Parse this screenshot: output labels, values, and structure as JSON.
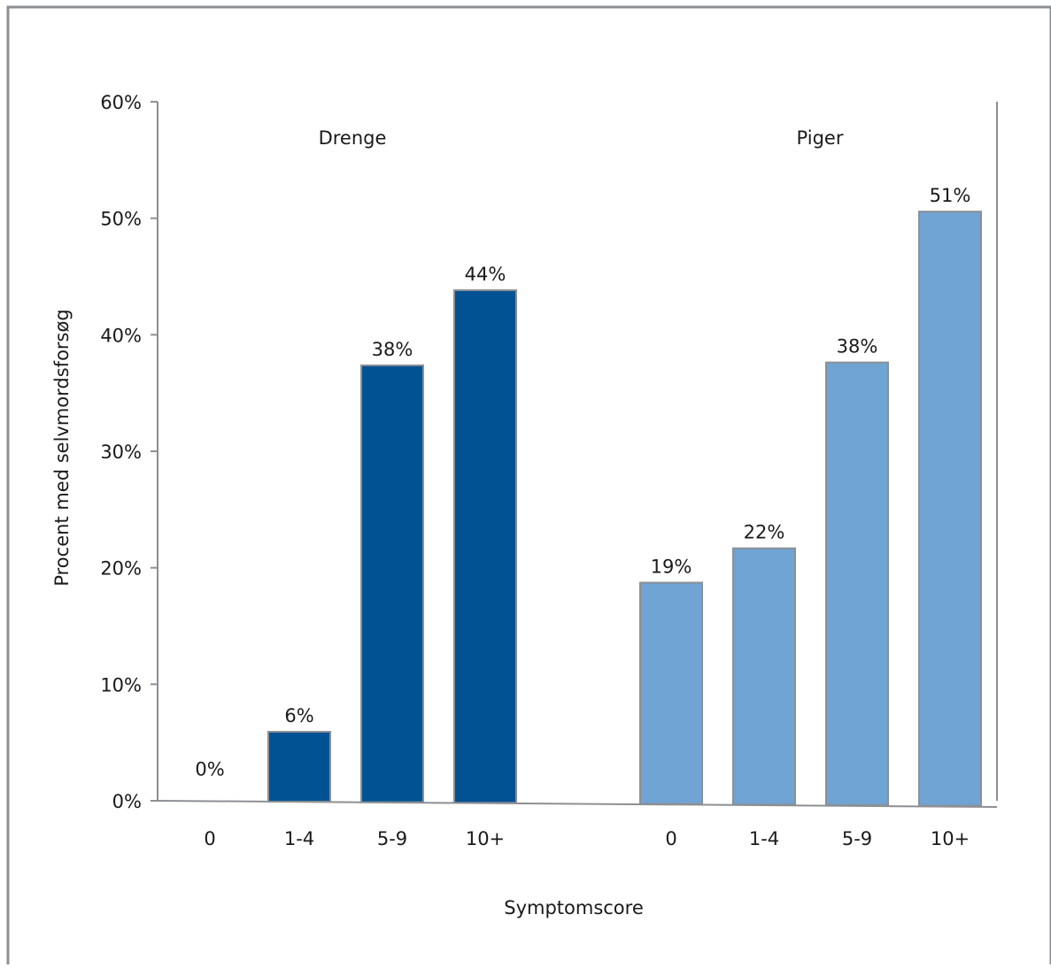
{
  "chart_data": {
    "type": "bar",
    "title": "",
    "xlabel": "Symptomscore",
    "ylabel": "Procent med selvmordsforsøg",
    "ylim": [
      0,
      0.6
    ],
    "y_ticks": [
      0,
      0.1,
      0.2,
      0.3,
      0.4,
      0.5,
      0.6
    ],
    "y_tick_labels": [
      "0%",
      "10%",
      "20%",
      "30%",
      "40%",
      "50%",
      "60%"
    ],
    "grid": false,
    "legend": "none",
    "groups": [
      {
        "name": "Drenge",
        "color": "#005293",
        "categories": [
          "0",
          "1-4",
          "5-9",
          "10+"
        ],
        "values": [
          0,
          0.06,
          0.375,
          0.44
        ],
        "value_labels": [
          "0%",
          "6%",
          "38%",
          "44%"
        ]
      },
      {
        "name": "Piger",
        "color": "#6fa4d4",
        "categories": [
          "0",
          "1-4",
          "5-9",
          "10+"
        ],
        "values": [
          0.19,
          0.22,
          0.38,
          0.51
        ],
        "value_labels": [
          "19%",
          "22%",
          "38%",
          "51%"
        ]
      }
    ]
  },
  "colors": {
    "frame": "#8c8f94",
    "axis": "#8c8f94",
    "bar_border": "#8c8f94"
  }
}
